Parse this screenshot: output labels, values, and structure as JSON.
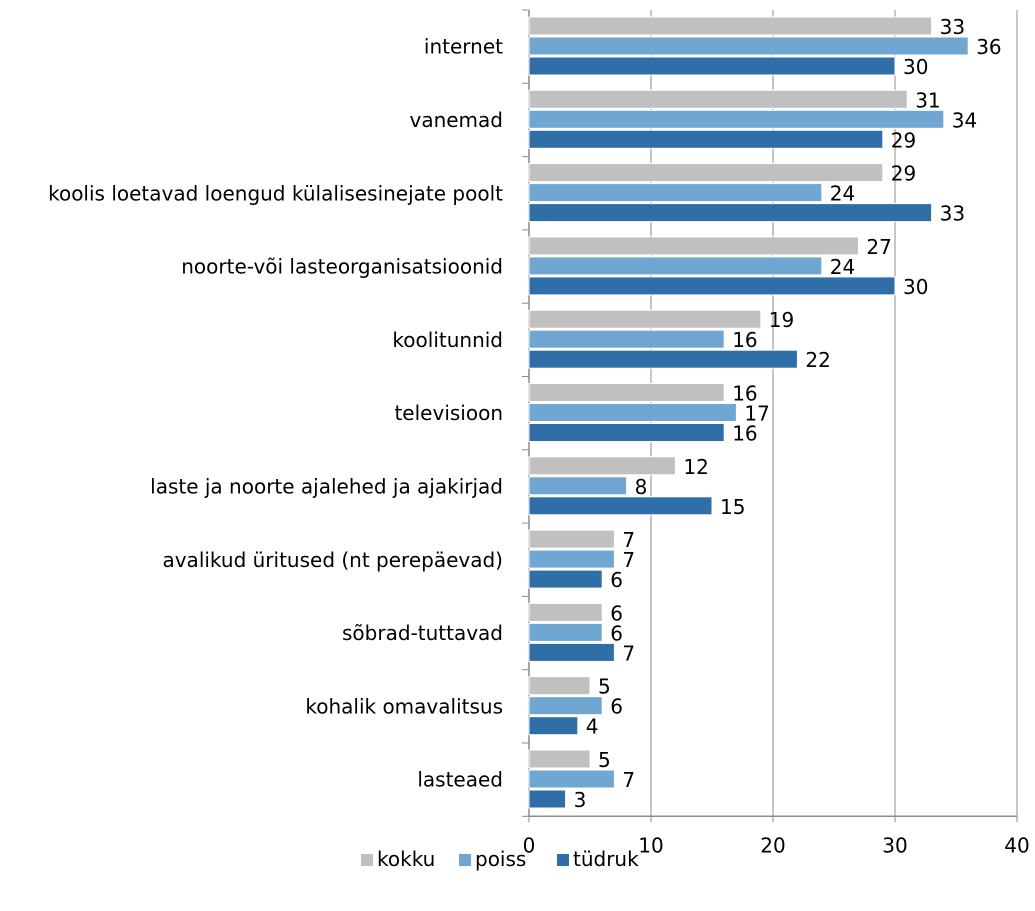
{
  "chart_data": {
    "type": "bar",
    "orientation": "horizontal",
    "title": "",
    "xlabel": "",
    "ylabel": "",
    "xlim": [
      0,
      40
    ],
    "xticks": [
      "0",
      "10",
      "20",
      "30",
      "40"
    ],
    "grid": true,
    "legend_position": "bottom",
    "categories": [
      "internet",
      "vanemad",
      "koolis loetavad loengud külalisesinejate poolt",
      "noorte-või lasteorganisatsioonid",
      "koolitunnid",
      "televisioon",
      "laste ja noorte ajalehed ja ajakirjad",
      "avalikud üritused (nt perepäevad)",
      "sõbrad-tuttavad",
      "kohalik omavalitsus",
      "lasteaed"
    ],
    "series": [
      {
        "name": "kokku",
        "color": "#c0c0c0",
        "values": [
          33,
          31,
          29,
          27,
          19,
          16,
          12,
          7,
          6,
          5,
          5
        ]
      },
      {
        "name": "poiss",
        "color": "#70a6d2",
        "values": [
          36,
          34,
          24,
          24,
          16,
          17,
          8,
          7,
          6,
          6,
          7
        ]
      },
      {
        "name": "tüdruk",
        "color": "#2f6ea7",
        "values": [
          30,
          29,
          33,
          30,
          22,
          16,
          15,
          6,
          7,
          4,
          3
        ]
      }
    ]
  }
}
